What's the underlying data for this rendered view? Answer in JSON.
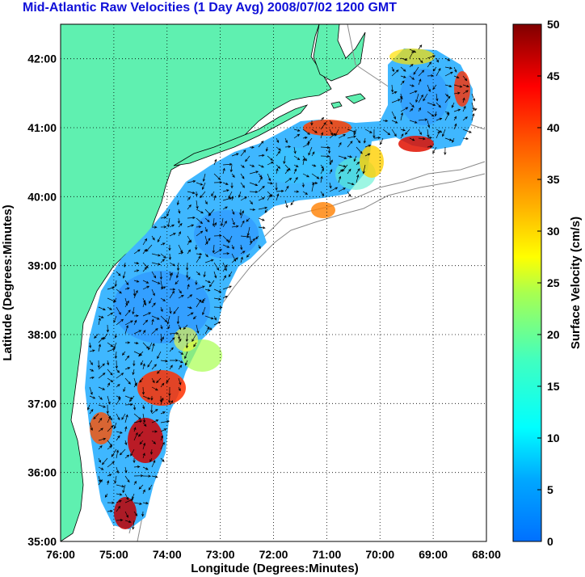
{
  "title": "Mid-Atlantic Raw Velocities (1 Day Avg) 2008/07/02 1200 GMT",
  "map": {
    "xlabel": "Longitude (Degrees:Minutes)",
    "ylabel": "Latitude (Degrees:Minutes)",
    "lon_ticks": [
      "76:00",
      "75:00",
      "74:00",
      "73:00",
      "72:00",
      "71:00",
      "70:00",
      "69:00",
      "68:00"
    ],
    "lat_ticks": [
      "35:00",
      "36:00",
      "37:00",
      "38:00",
      "39:00",
      "40:00",
      "41:00",
      "42:00"
    ],
    "lon_range": [
      -76,
      -68
    ],
    "lat_range": [
      35,
      42.5
    ],
    "land_color": "#5ff0b0",
    "grid": true
  },
  "colorbar": {
    "label": "Surface Velocity (cm/s)",
    "ticks": [
      "0",
      "5",
      "10",
      "15",
      "20",
      "25",
      "30",
      "35",
      "40",
      "45",
      "50"
    ],
    "range": [
      0,
      50
    ],
    "colormap": "jet"
  }
}
